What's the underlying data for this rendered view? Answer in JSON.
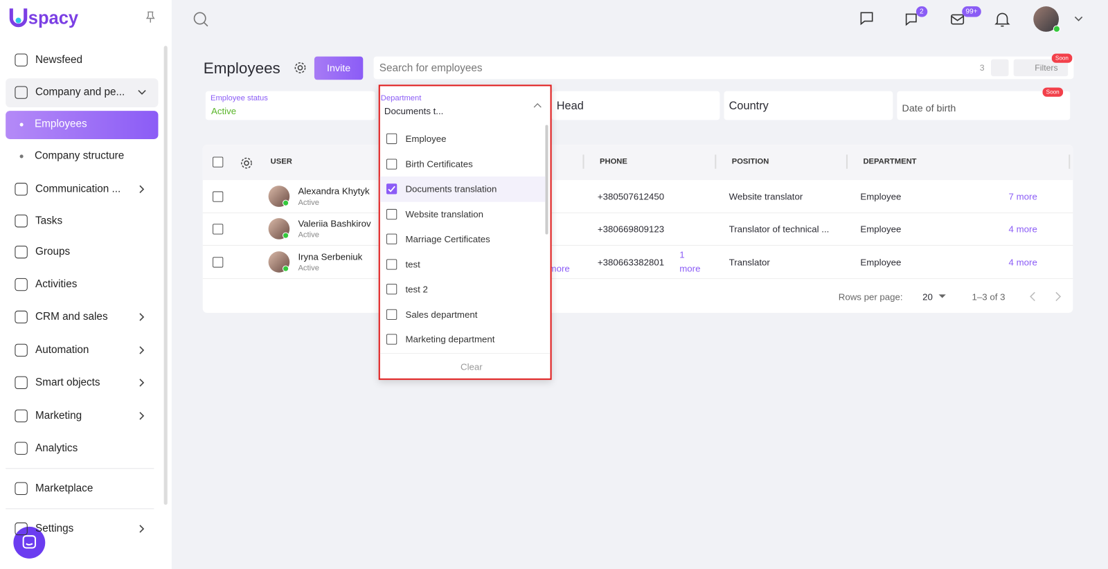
{
  "sidebar": {
    "logo_mark": "U",
    "logo_text": "spacy",
    "nav": [
      {
        "label": "Newsfeed"
      },
      {
        "label": "Company and pe...",
        "open": true
      },
      {
        "label": "Employees",
        "sub": true,
        "active": true
      },
      {
        "label": "Company structure",
        "sub": true
      },
      {
        "label": "Communication ...",
        "arrow": true
      },
      {
        "label": "Tasks"
      },
      {
        "label": "Groups"
      },
      {
        "label": "Activities"
      },
      {
        "label": "CRM and sales",
        "arrow": true
      },
      {
        "label": "Automation",
        "arrow": true
      },
      {
        "label": "Smart objects",
        "arrow": true
      },
      {
        "label": "Marketing",
        "arrow": true
      },
      {
        "label": "Analytics"
      },
      {
        "label": "Marketplace",
        "divider": true
      },
      {
        "label": "Settings",
        "arrow": true,
        "divider": true
      }
    ]
  },
  "topbar": {
    "chat_badge": "2",
    "mail_badge": "99+"
  },
  "header": {
    "title": "Employees",
    "invite": "Invite",
    "search_placeholder": "Search for employees",
    "count": "3",
    "filters": "Filters",
    "filters_badge": "Soon"
  },
  "filters": {
    "status_label": "Employee status",
    "status_value": "Active",
    "department_label": "Department",
    "department_value": "Documents t...",
    "head": "Head",
    "country": "Country",
    "birth": "Date of birth",
    "birth_badge": "Soon"
  },
  "dropdown": {
    "options": [
      {
        "label": "Employee",
        "checked": false
      },
      {
        "label": "Birth Certificates",
        "checked": false
      },
      {
        "label": "Documents translation",
        "checked": true
      },
      {
        "label": "Website translation",
        "checked": false
      },
      {
        "label": "Marriage Certificates",
        "checked": false
      },
      {
        "label": "test",
        "checked": false
      },
      {
        "label": "test 2",
        "checked": false
      },
      {
        "label": "Sales department",
        "checked": false
      },
      {
        "label": "Marketing department",
        "checked": false
      }
    ],
    "clear": "Clear"
  },
  "table": {
    "columns": {
      "user": "USER",
      "phone": "PHONE",
      "position": "POSITION",
      "department": "DEPARTMENT"
    },
    "rows": [
      {
        "name": "Alexandra Khytyk",
        "status": "Active",
        "phone": "+380507612450",
        "position": "Website translator",
        "department": "Employee",
        "more": "7 more"
      },
      {
        "name": "Valeriia Bashkirov",
        "status": "Active",
        "phone": "+380669809123",
        "position": "Translator of technical ...",
        "department": "Employee",
        "more": "4 more"
      },
      {
        "name": "Iryna Serbeniuk",
        "status": "Active",
        "phone": "+380663382801",
        "phone_more_count": "1",
        "phone_more": "more",
        "hidden_more": "more",
        "position": "Translator",
        "department": "Employee",
        "more": "4 more"
      }
    ]
  },
  "pagination": {
    "rows_label": "Rows per page:",
    "rows_value": "20",
    "range": "1–3 of 3"
  }
}
